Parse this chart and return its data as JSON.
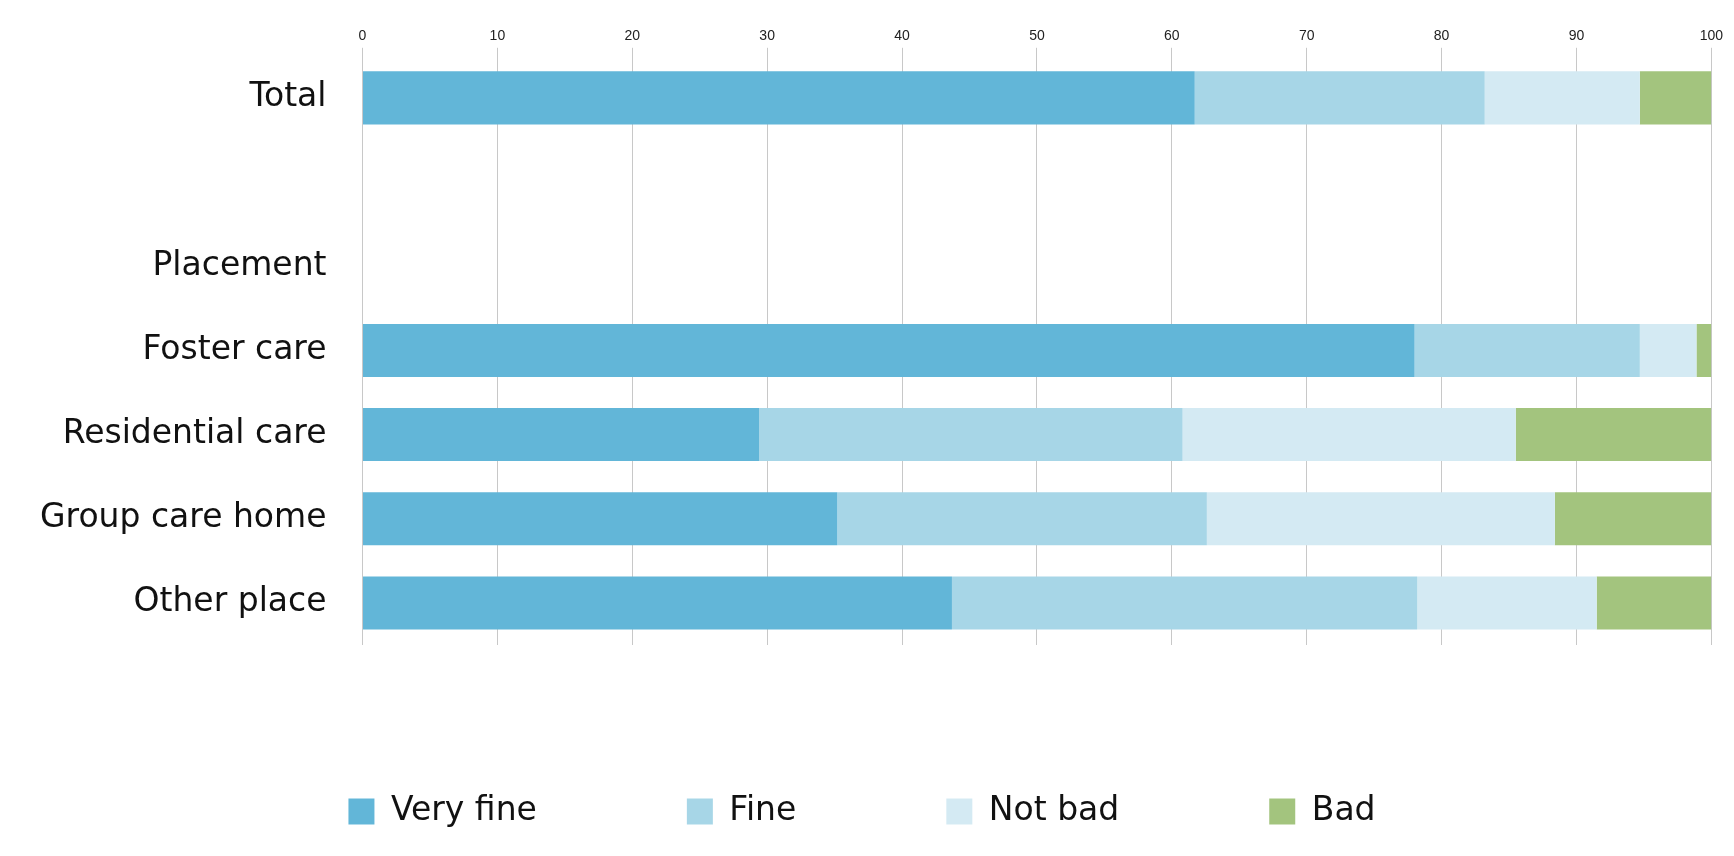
{
  "chart_data": {
    "type": "bar",
    "orientation": "horizontal",
    "stacked": true,
    "categories": [
      "Total",
      null,
      "Placement",
      "Foster care",
      "Residential care",
      "Group care home",
      "Other place"
    ],
    "series": [
      {
        "name": "Very fine",
        "color": "#62b6d8",
        "values": [
          61.7,
          null,
          null,
          78.0,
          29.4,
          35.2,
          43.7
        ]
      },
      {
        "name": "Fine",
        "color": "#a7d6e7",
        "values": [
          21.5,
          null,
          null,
          16.7,
          31.4,
          27.4,
          34.5
        ]
      },
      {
        "name": "Not bad",
        "color": "#d4eaf3",
        "values": [
          11.5,
          null,
          null,
          4.2,
          24.7,
          25.8,
          13.3
        ]
      },
      {
        "name": "Bad",
        "color": "#a3c47e",
        "values": [
          5.3,
          null,
          null,
          1.1,
          14.5,
          11.6,
          8.5
        ]
      }
    ],
    "xlim": [
      0,
      100
    ],
    "xticks": [
      0,
      10,
      20,
      30,
      40,
      50,
      60,
      70,
      80,
      90,
      100
    ],
    "grid": "x",
    "legend": "bottom"
  }
}
